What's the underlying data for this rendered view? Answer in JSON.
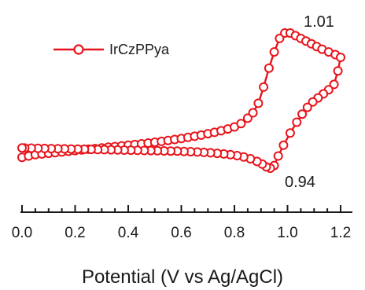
{
  "chart_data": {
    "type": "line",
    "title": "",
    "xlabel": "Potential (V vs Ag/AgCl)",
    "ylabel": "",
    "xlim": [
      0.0,
      1.22
    ],
    "x_ticks": [
      "0.0",
      "0.2",
      "0.4",
      "0.6",
      "0.8",
      "1.0",
      "1.2"
    ],
    "y_axis_visible": false,
    "legend": {
      "entries": [
        "IrCzPPya"
      ],
      "position": "top-left"
    },
    "series": [
      {
        "name": "IrCzPPya",
        "color": "#e8141b",
        "marker": "open-circle",
        "points": [
          [
            0.0,
            0.08
          ],
          [
            0.025,
            0.09
          ],
          [
            0.05,
            0.1
          ],
          [
            0.075,
            0.105
          ],
          [
            0.1,
            0.11
          ],
          [
            0.125,
            0.115
          ],
          [
            0.15,
            0.12
          ],
          [
            0.175,
            0.125
          ],
          [
            0.2,
            0.13
          ],
          [
            0.225,
            0.135
          ],
          [
            0.25,
            0.14
          ],
          [
            0.275,
            0.145
          ],
          [
            0.3,
            0.15
          ],
          [
            0.325,
            0.155
          ],
          [
            0.35,
            0.16
          ],
          [
            0.375,
            0.165
          ],
          [
            0.4,
            0.17
          ],
          [
            0.425,
            0.175
          ],
          [
            0.45,
            0.18
          ],
          [
            0.475,
            0.186
          ],
          [
            0.5,
            0.192
          ],
          [
            0.525,
            0.198
          ],
          [
            0.55,
            0.205
          ],
          [
            0.575,
            0.212
          ],
          [
            0.6,
            0.22
          ],
          [
            0.625,
            0.228
          ],
          [
            0.65,
            0.236
          ],
          [
            0.675,
            0.245
          ],
          [
            0.7,
            0.255
          ],
          [
            0.725,
            0.265
          ],
          [
            0.75,
            0.277
          ],
          [
            0.775,
            0.29
          ],
          [
            0.8,
            0.305
          ],
          [
            0.825,
            0.33
          ],
          [
            0.85,
            0.37
          ],
          [
            0.87,
            0.41
          ],
          [
            0.89,
            0.48
          ],
          [
            0.91,
            0.6
          ],
          [
            0.93,
            0.74
          ],
          [
            0.95,
            0.86
          ],
          [
            0.97,
            0.96
          ],
          [
            0.99,
            1.0
          ],
          [
            1.01,
            1.0
          ],
          [
            1.03,
            0.98
          ],
          [
            1.05,
            0.96
          ],
          [
            1.07,
            0.94
          ],
          [
            1.09,
            0.92
          ],
          [
            1.11,
            0.9
          ],
          [
            1.13,
            0.88
          ],
          [
            1.155,
            0.86
          ],
          [
            1.18,
            0.84
          ],
          [
            1.2,
            0.82
          ],
          [
            1.19,
            0.72
          ],
          [
            1.175,
            0.62
          ],
          [
            1.155,
            0.58
          ],
          [
            1.135,
            0.55
          ],
          [
            1.115,
            0.52
          ],
          [
            1.095,
            0.49
          ],
          [
            1.075,
            0.45
          ],
          [
            1.055,
            0.4
          ],
          [
            1.035,
            0.34
          ],
          [
            1.01,
            0.26
          ],
          [
            0.985,
            0.17
          ],
          [
            0.965,
            0.09
          ],
          [
            0.95,
            0.02
          ],
          [
            0.935,
            0.0
          ],
          [
            0.92,
            0.01
          ],
          [
            0.905,
            0.03
          ],
          [
            0.885,
            0.05
          ],
          [
            0.86,
            0.07
          ],
          [
            0.835,
            0.083
          ],
          [
            0.81,
            0.093
          ],
          [
            0.785,
            0.1
          ],
          [
            0.76,
            0.105
          ],
          [
            0.735,
            0.11
          ],
          [
            0.71,
            0.114
          ],
          [
            0.685,
            0.117
          ],
          [
            0.66,
            0.12
          ],
          [
            0.635,
            0.122
          ],
          [
            0.61,
            0.124
          ],
          [
            0.585,
            0.126
          ],
          [
            0.56,
            0.127
          ],
          [
            0.535,
            0.128
          ],
          [
            0.51,
            0.129
          ],
          [
            0.485,
            0.13
          ],
          [
            0.46,
            0.131
          ],
          [
            0.435,
            0.132
          ],
          [
            0.41,
            0.133
          ],
          [
            0.385,
            0.134
          ],
          [
            0.36,
            0.135
          ],
          [
            0.335,
            0.136
          ],
          [
            0.31,
            0.137
          ],
          [
            0.285,
            0.138
          ],
          [
            0.26,
            0.139
          ],
          [
            0.235,
            0.14
          ],
          [
            0.21,
            0.141
          ],
          [
            0.185,
            0.142
          ],
          [
            0.16,
            0.143
          ],
          [
            0.135,
            0.144
          ],
          [
            0.11,
            0.145
          ],
          [
            0.085,
            0.146
          ],
          [
            0.06,
            0.147
          ],
          [
            0.035,
            0.148
          ],
          [
            0.01,
            0.149
          ],
          [
            0.0,
            0.15
          ]
        ]
      }
    ],
    "annotations": [
      "1.01",
      "0.94"
    ]
  }
}
